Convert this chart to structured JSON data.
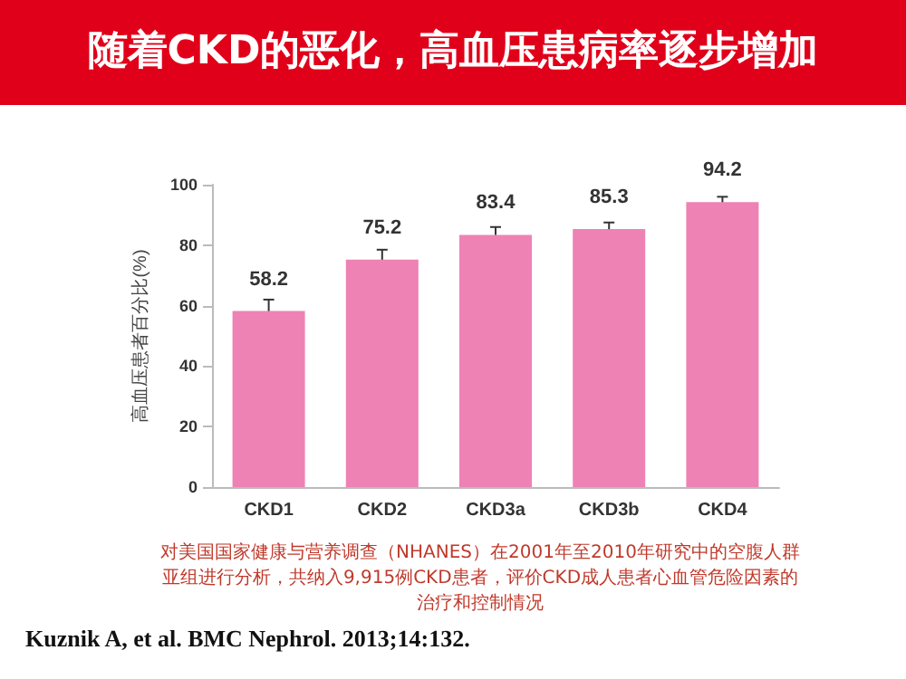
{
  "chart_data": {
    "type": "bar",
    "title": "随着CKD的恶化，高血压患病率逐步增加",
    "ylabel": "高血压患者百分比(%)",
    "categories": [
      "CKD1",
      "CKD2",
      "CKD3a",
      "CKD3b",
      "CKD4"
    ],
    "values": [
      58.2,
      75.2,
      83.4,
      85.3,
      94.2
    ],
    "errors": [
      [
        58.2,
        62
      ],
      [
        75.2,
        78.5
      ],
      [
        83.4,
        86
      ],
      [
        85.3,
        87.5
      ],
      [
        94.2,
        96
      ]
    ],
    "color": "#ee82b4",
    "ylim": [
      0,
      100
    ],
    "yticks": [
      0,
      20,
      40,
      60,
      80,
      100
    ],
    "grid": false,
    "data_labels": true,
    "annotations": [
      "对美国国家健康与营养调查（NHANES）在2001年至2010年研究中的空腹人群亚组进行分析，共纳入9,915例CKD患者，评价CKD成人患者心血管危险因素的治疗和控制情况",
      "Kuznik A, et al. BMC Nephrol. 2013;14:132."
    ]
  }
}
